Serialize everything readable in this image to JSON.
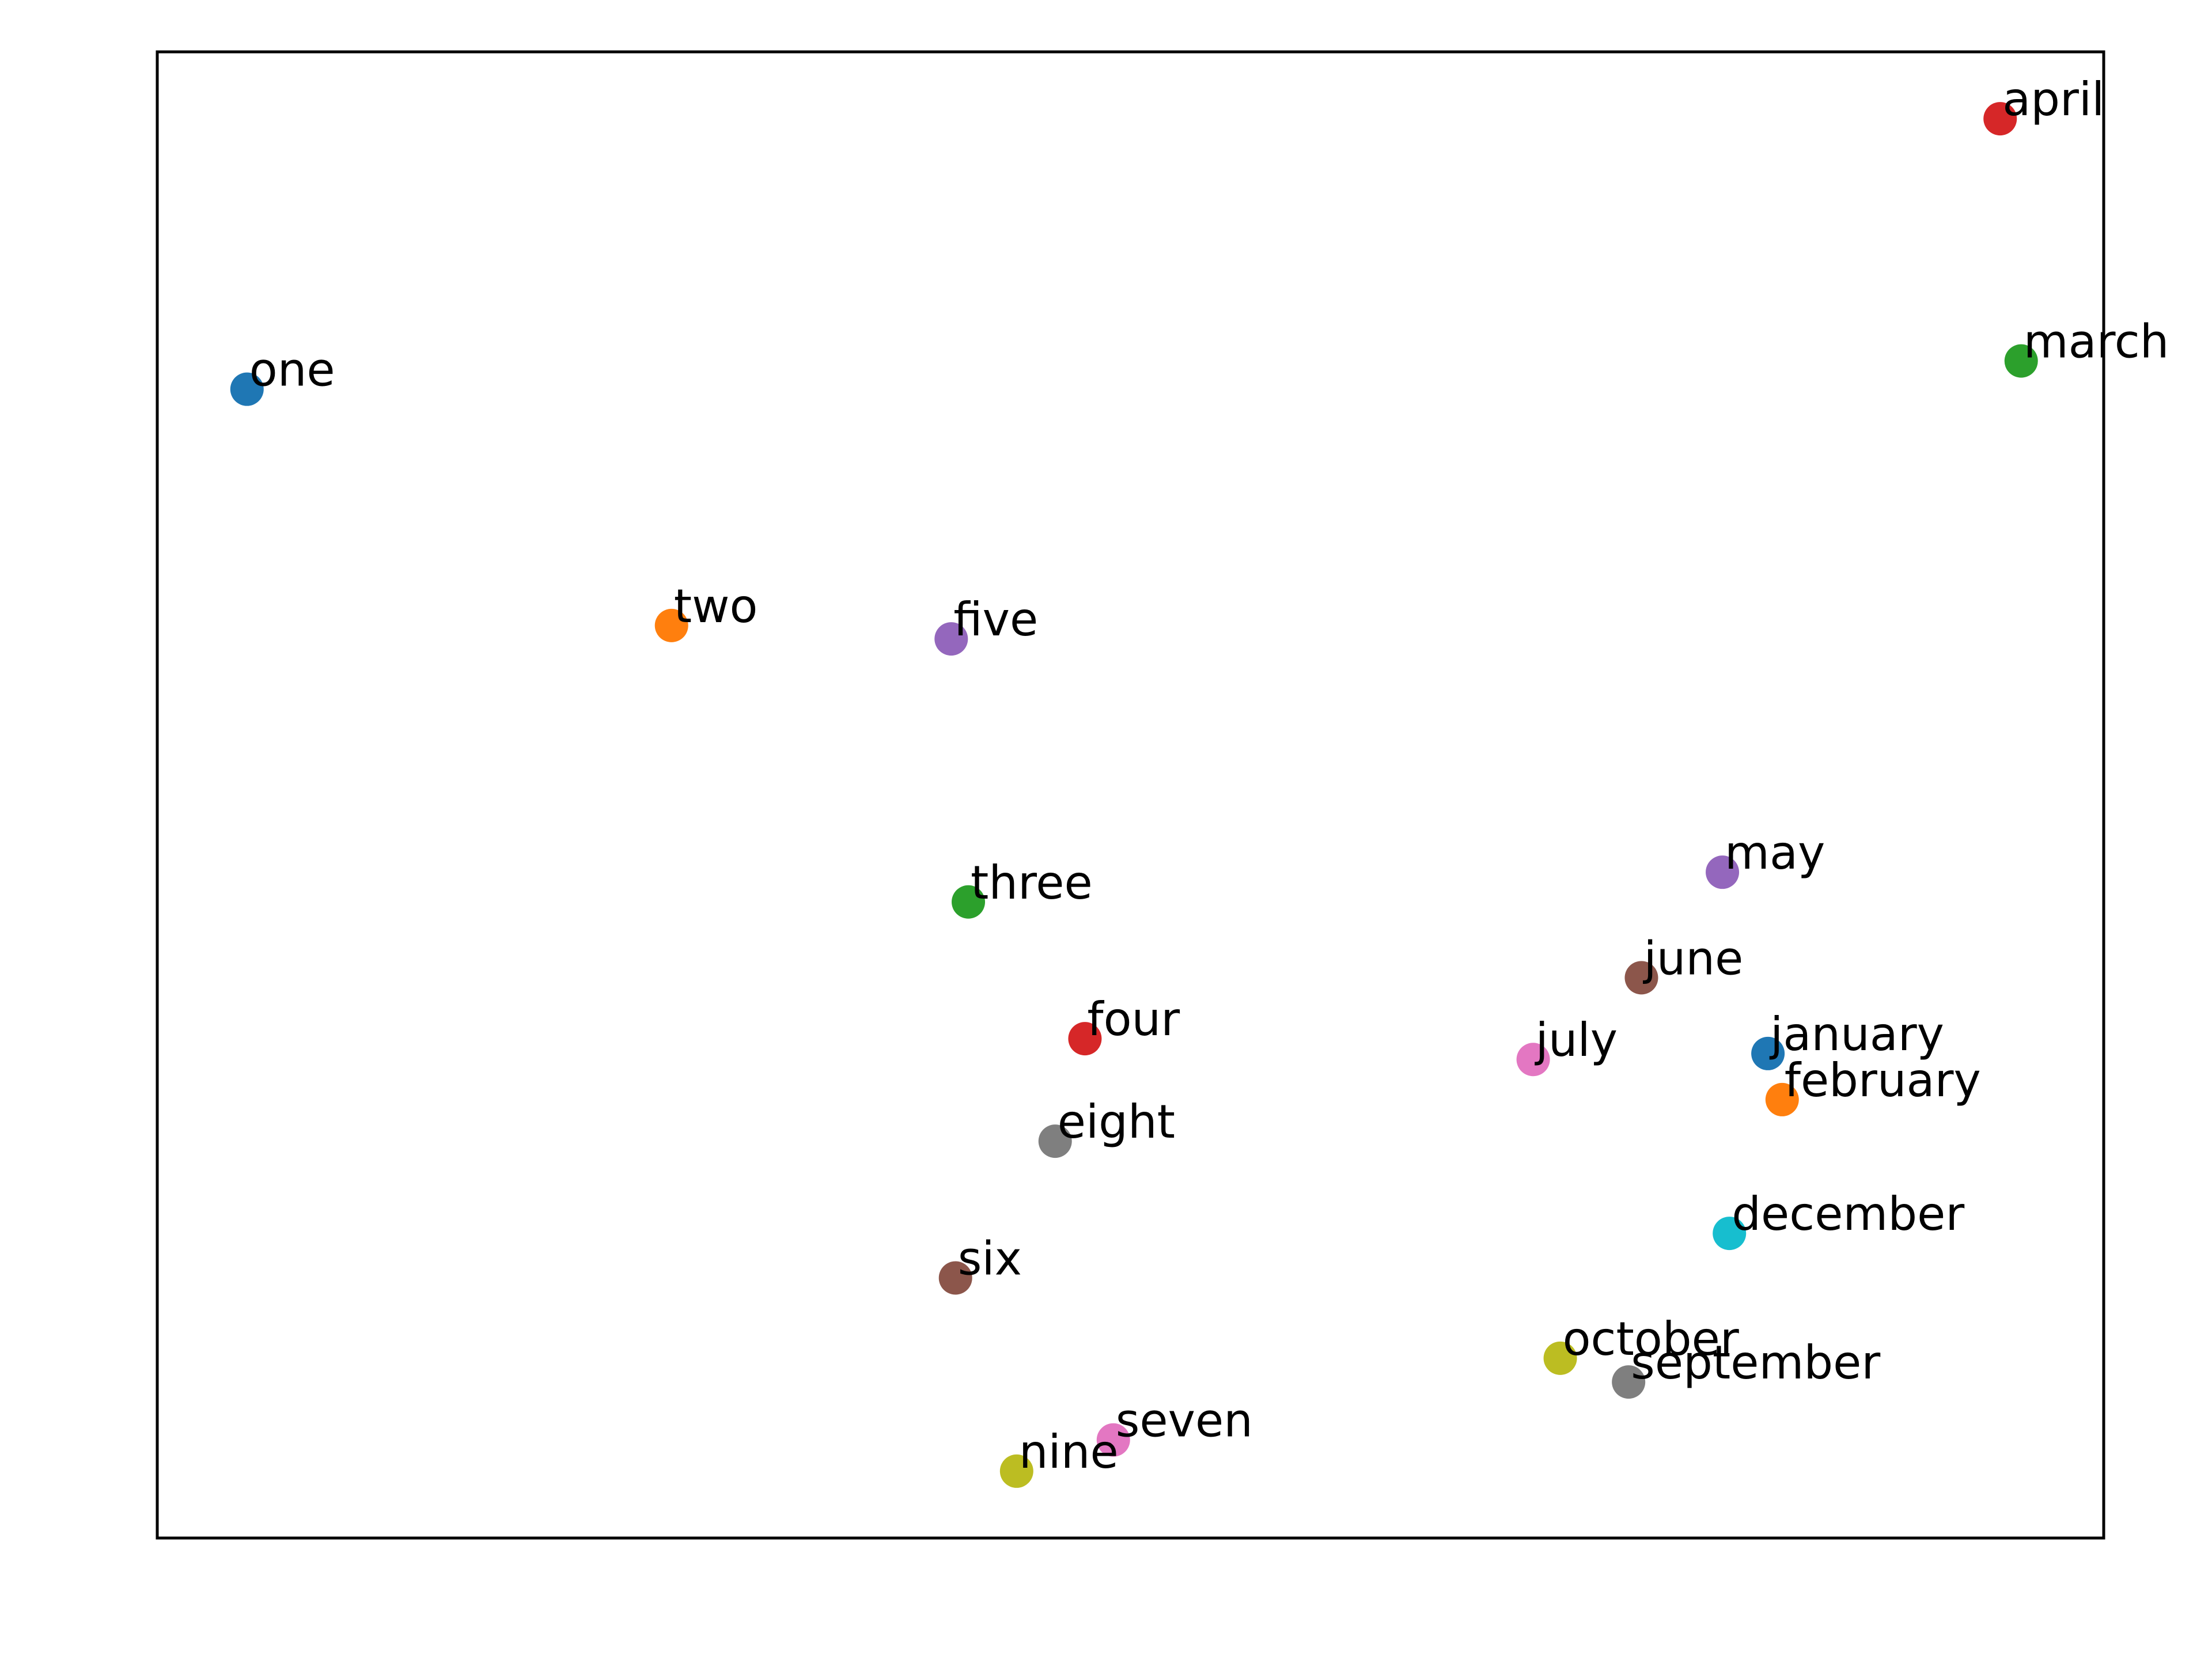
{
  "chart_data": {
    "type": "scatter",
    "title": "",
    "xlabel": "",
    "ylabel": "",
    "xlim": [
      0,
      1
    ],
    "ylim": [
      0,
      1
    ],
    "grid": false,
    "ticks_visible": false,
    "points": [
      {
        "label": "april",
        "x": 0.9468,
        "y": 0.955,
        "color": "#d62728"
      },
      {
        "label": "march",
        "x": 0.9576,
        "y": 0.792,
        "color": "#2ca02c"
      },
      {
        "label": "one",
        "x": 0.0461,
        "y": 0.773,
        "color": "#1f77b4"
      },
      {
        "label": "two",
        "x": 0.2642,
        "y": 0.614,
        "color": "#ff7f0e"
      },
      {
        "label": "five",
        "x": 0.4079,
        "y": 0.605,
        "color": "#9467bd"
      },
      {
        "label": "may",
        "x": 0.8041,
        "y": 0.448,
        "color": "#9467bd"
      },
      {
        "label": "three",
        "x": 0.4167,
        "y": 0.428,
        "color": "#2ca02c"
      },
      {
        "label": "june",
        "x": 0.7625,
        "y": 0.377,
        "color": "#8c564b"
      },
      {
        "label": "four",
        "x": 0.4766,
        "y": 0.336,
        "color": "#d62728"
      },
      {
        "label": "july",
        "x": 0.7069,
        "y": 0.322,
        "color": "#e377c2"
      },
      {
        "label": "january",
        "x": 0.8275,
        "y": 0.326,
        "color": "#1f77b4"
      },
      {
        "label": "february",
        "x": 0.8348,
        "y": 0.295,
        "color": "#ff7f0e"
      },
      {
        "label": "eight",
        "x": 0.4613,
        "y": 0.267,
        "color": "#7f7f7f"
      },
      {
        "label": "december",
        "x": 0.8077,
        "y": 0.205,
        "color": "#17becf"
      },
      {
        "label": "six",
        "x": 0.4101,
        "y": 0.175,
        "color": "#8c564b"
      },
      {
        "label": "october",
        "x": 0.7208,
        "y": 0.121,
        "color": "#bcbd22"
      },
      {
        "label": "september",
        "x": 0.7559,
        "y": 0.105,
        "color": "#7f7f7f"
      },
      {
        "label": "seven",
        "x": 0.4912,
        "y": 0.066,
        "color": "#e377c2"
      },
      {
        "label": "nine",
        "x": 0.4415,
        "y": 0.045,
        "color": "#bcbd22"
      }
    ]
  }
}
